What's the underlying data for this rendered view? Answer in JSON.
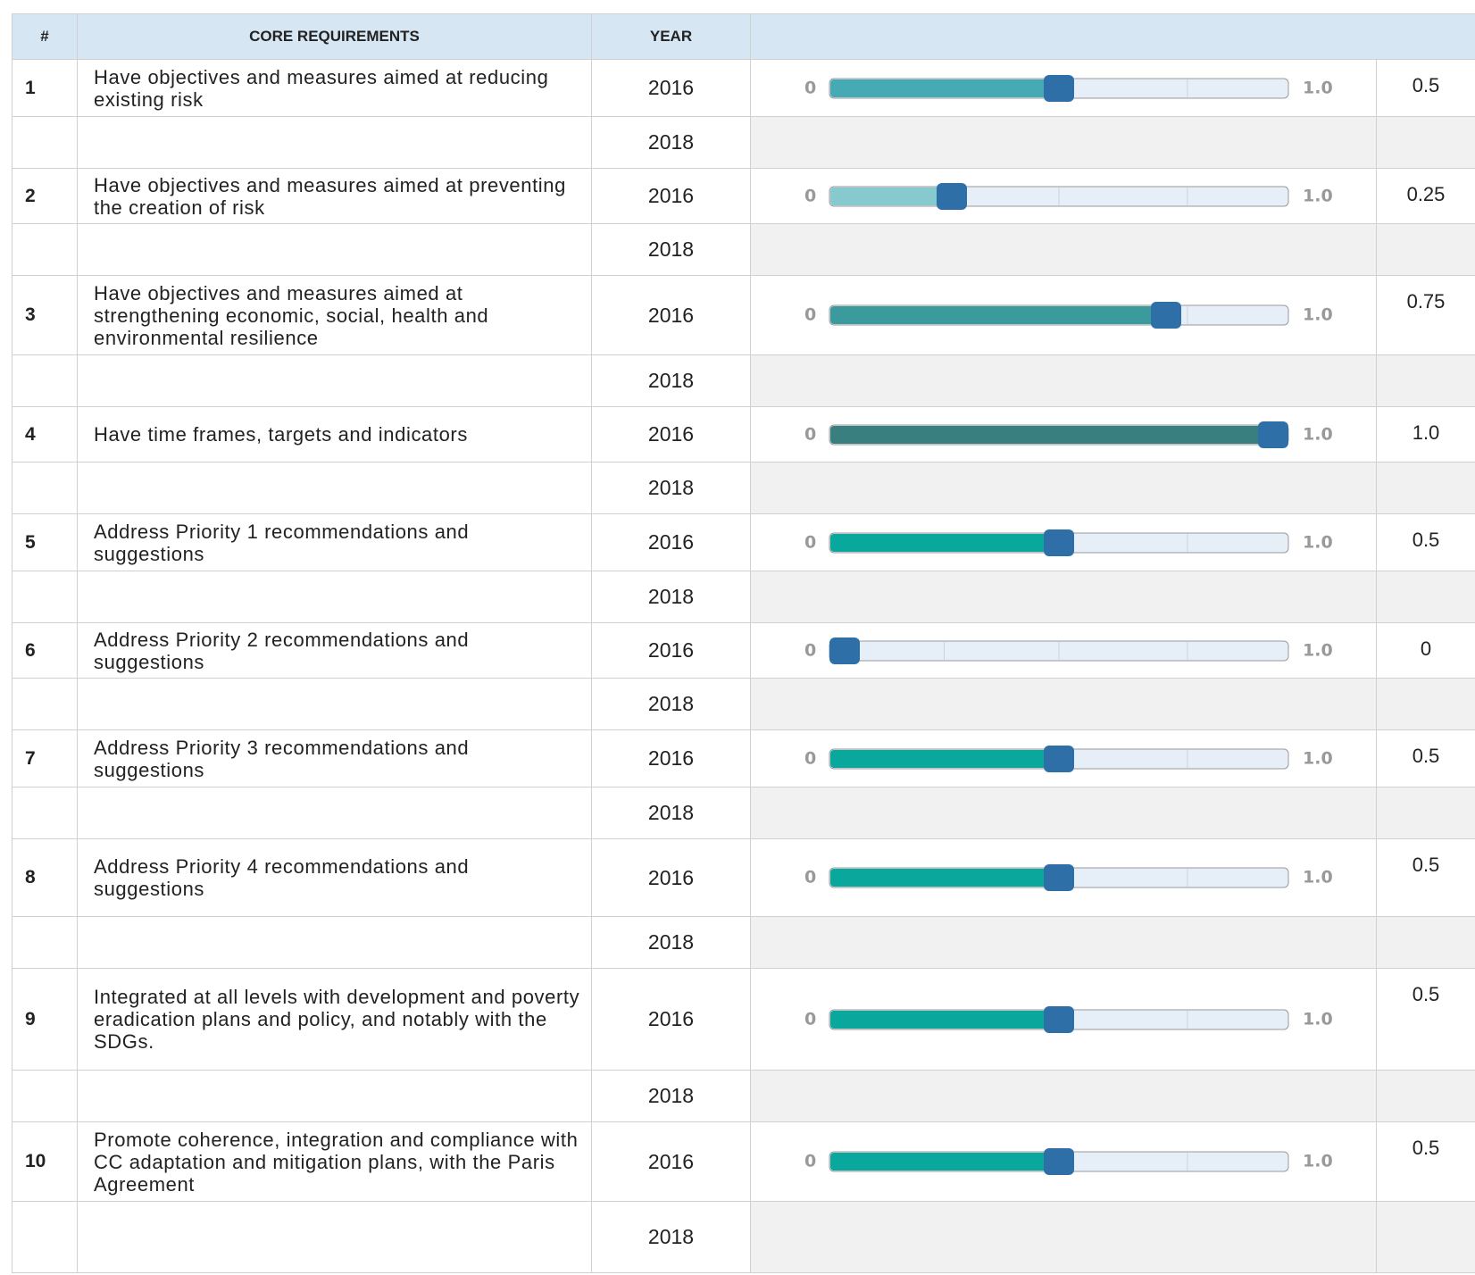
{
  "table": {
    "header": [
      "#",
      "CORE REQUIREMENTS",
      "YEAR"
    ],
    "scale": {
      "min": 0,
      "max": {
        "value": 1,
        "label": "1.0"
      }
    },
    "rows": [
      {
        "number": "1",
        "requirement": "Have objectives and measures aimed at reducing existing risk",
        "years": [
          "2016",
          "2018"
        ],
        "value": 0.5,
        "color": "#45aab3"
      },
      {
        "number": "2",
        "requirement": "Have objectives and measures aimed at preventing the creation of risk",
        "years": [
          "2016",
          "2018"
        ],
        "value": 0.25,
        "color": "#86c9cf"
      },
      {
        "number": "3",
        "requirement": "Have objectives and measures aimed at strengthening economic, social, health and environmental resilience",
        "years": [
          "2016",
          "2018"
        ],
        "value": 0.75,
        "color": "#3a9a9c"
      },
      {
        "number": "4",
        "requirement": "Have  time frames, targets and indicators",
        "years": [
          "2016",
          "2018"
        ],
        "value": 1,
        "value_label": "1.0",
        "color": "#3a7f80"
      },
      {
        "number": "5",
        "requirement": "Address Priority 1 recommendations and suggestions",
        "years": [
          "2016",
          "2018"
        ],
        "value": 0.5,
        "color": "#0aa89c"
      },
      {
        "number": "6",
        "requirement": "Address Priority 2 recommendations and suggestions",
        "years": [
          "2016",
          "2018"
        ],
        "value": 0,
        "color": "#0aa89c"
      },
      {
        "number": "7",
        "requirement": "Address Priority 3 recommendations and suggestions",
        "years": [
          "2016",
          "2018"
        ],
        "value": 0.5,
        "color": "#0aa89c"
      },
      {
        "number": "8",
        "requirement": "Address Priority 4 recommendations and suggestions",
        "years": [
          "2016",
          "2018"
        ],
        "value": 0.5,
        "color": "#0aa89c"
      },
      {
        "number": "9",
        "requirement": "Integrated at all levels with development and poverty eradication plans and policy, and notably with the SDGs.",
        "years": [
          "2016",
          "2018"
        ],
        "value": 0.5,
        "color": "#0aa89c"
      },
      {
        "number": "10",
        "requirement": "Promote coherence, integration and compliance with CC adaptation and mitigation plans, with the Paris Agreement",
        "years": [
          "2016",
          "2018"
        ],
        "value": 0.5,
        "color": "#0aa89c"
      }
    ]
  }
}
